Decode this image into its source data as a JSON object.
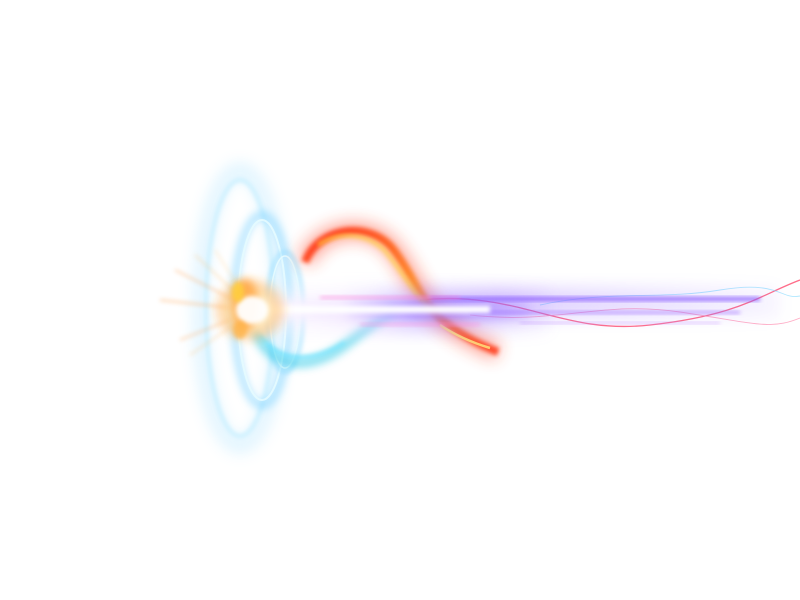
{
  "image": {
    "background": "#ffffff",
    "colors": {
      "ring_cyan": "#7fd3ff",
      "ring_core": "#bff0ff",
      "flare_orange": "#ff8a1f",
      "flare_yellow": "#ffd23a",
      "fire_red": "#ff3b1a",
      "beam_violet": "#8a5cff",
      "beam_magenta": "#ff4fd8",
      "beam_white": "#ffffff",
      "swirl_teal": "#2ec9e6",
      "thread_red": "#ff4a6e"
    }
  }
}
